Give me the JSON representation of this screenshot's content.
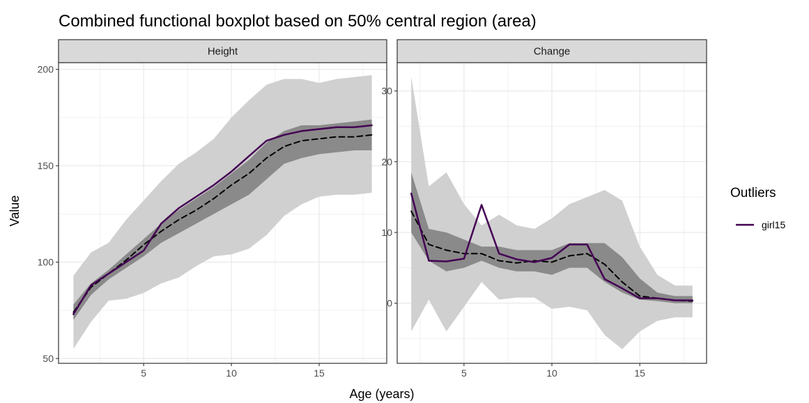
{
  "chart_data": {
    "type": "area",
    "title": "Combined functional boxplot based on 50% central region (area)",
    "xlabel": "Age (years)",
    "ylabel": "Value",
    "grid": true,
    "legend": {
      "title": "Outliers",
      "placement": "right",
      "entries": [
        "girl15"
      ]
    },
    "colors": {
      "outer_band": "#d0d0d0",
      "central_band": "#8a8a8a",
      "median": "#000000",
      "outlier": "#440154",
      "strip_fill": "#d9d9d9",
      "grid_major": "#ebebeb"
    },
    "panels": [
      {
        "strip": "Height",
        "xlim": [
          0.15,
          18.85
        ],
        "ylim": [
          47.5,
          203.5
        ],
        "xticks": [
          5,
          10,
          15
        ],
        "yticks": [
          50,
          100,
          150,
          200
        ],
        "x": [
          1,
          2,
          3,
          4,
          5,
          6,
          7,
          8,
          9,
          10,
          11,
          12,
          13,
          14,
          15,
          16,
          17,
          18
        ],
        "outer_upper": [
          93,
          105,
          110,
          122,
          132,
          142,
          151,
          157,
          164,
          175,
          184,
          192,
          195,
          195,
          193,
          195,
          196,
          197
        ],
        "outer_lower": [
          55,
          69,
          80,
          81,
          84,
          89,
          92,
          98,
          103,
          104,
          107,
          114,
          124,
          130,
          134,
          135,
          135,
          136
        ],
        "central_upper": [
          78,
          89,
          96,
          104,
          112,
          120,
          127,
          133,
          139,
          146,
          153,
          162,
          168,
          171,
          171,
          172,
          173,
          174
        ],
        "central_lower": [
          70,
          83,
          91,
          97,
          103,
          110,
          115,
          120,
          125,
          130,
          135,
          143,
          151,
          154,
          156,
          157,
          158,
          158
        ],
        "median": [
          74,
          87,
          94,
          101,
          109,
          116,
          122,
          127,
          133,
          140,
          146,
          154,
          160,
          163,
          164,
          165,
          165,
          166
        ],
        "outliers": [
          {
            "name": "girl15",
            "values": [
              73,
              88,
              94,
              100,
              106,
              120,
              128,
              134,
              140,
              147,
              155,
              163,
              166,
              168,
              169,
              170,
              170,
              171
            ]
          }
        ]
      },
      {
        "strip": "Change",
        "xlim": [
          1.2,
          18.8
        ],
        "ylim": [
          -8.5,
          34.0
        ],
        "xticks": [
          5,
          10,
          15
        ],
        "yticks": [
          0,
          10,
          20,
          30
        ],
        "x": [
          2,
          3,
          4,
          5,
          6,
          7,
          8,
          9,
          10,
          11,
          12,
          13,
          14,
          15,
          16,
          17,
          18
        ],
        "outer_upper": [
          32,
          16.5,
          18.5,
          14,
          11,
          12.5,
          11,
          10.5,
          12,
          14,
          15,
          16,
          14.5,
          8,
          4,
          2.5,
          2.5
        ],
        "outer_lower": [
          -4,
          0.5,
          -4,
          -0.5,
          3,
          0.5,
          0.8,
          0.8,
          -0.8,
          -0.5,
          -1,
          -4.5,
          -6.5,
          -4,
          -2.5,
          -2,
          -2
        ],
        "central_upper": [
          18.5,
          10.5,
          10,
          9,
          8,
          8,
          7.5,
          7.5,
          7.5,
          8.5,
          8.5,
          8.5,
          6.5,
          3.5,
          1.5,
          1,
          1
        ],
        "central_lower": [
          10,
          6,
          4.5,
          5,
          6,
          5,
          4.5,
          4.5,
          4,
          5,
          5,
          3,
          1.5,
          0.5,
          0.3,
          0,
          0
        ],
        "median": [
          13,
          8.3,
          7.5,
          7,
          7,
          6,
          5.7,
          6,
          5.8,
          6.7,
          7,
          5.5,
          3,
          1,
          0.7,
          0.4,
          0.3
        ],
        "outliers": [
          {
            "name": "girl15",
            "values": [
              15.5,
              6,
              5.9,
              6.3,
              13.9,
              7,
              6.2,
              5.8,
              6.4,
              8.3,
              8.3,
              3.4,
              2.1,
              0.7,
              0.7,
              0.4,
              0.4
            ]
          }
        ]
      }
    ]
  }
}
